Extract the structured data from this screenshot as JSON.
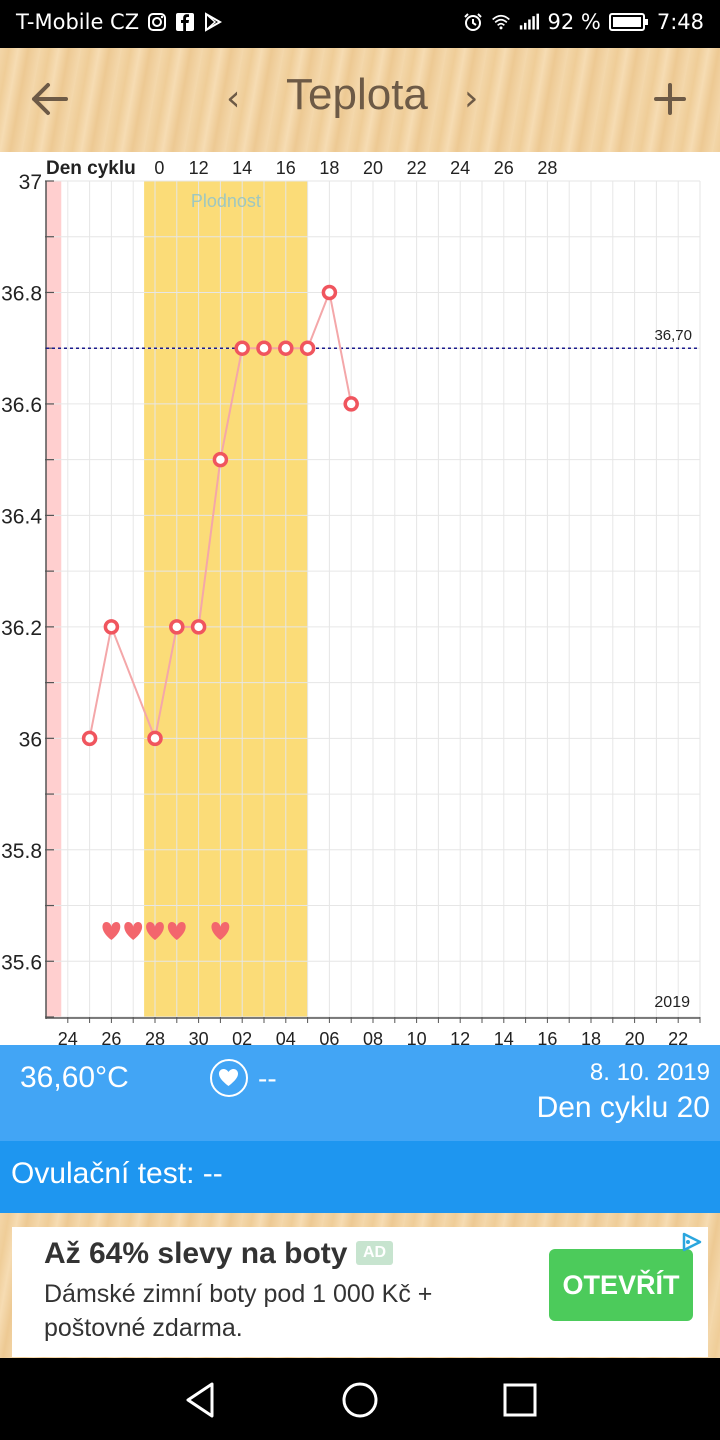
{
  "status_bar": {
    "carrier": "T-Mobile CZ",
    "battery": "92 %",
    "time": "7:48",
    "icons": [
      "instagram-icon",
      "facebook-icon",
      "play-store-icon",
      "alarm-icon",
      "wifi-icon",
      "signal-icon",
      "battery-icon"
    ]
  },
  "header": {
    "title": "Teplota",
    "prev_glyph": "‹",
    "next_glyph": "›"
  },
  "chart_data": {
    "type": "line",
    "top_axis_label": "Den cyklu",
    "top_ticks": [
      "0",
      "12",
      "14",
      "16",
      "18",
      "20",
      "22",
      "24",
      "26",
      "28"
    ],
    "bottom_ticks": [
      "24",
      "26",
      "28",
      "30",
      "02",
      "04",
      "06",
      "08",
      "10",
      "12",
      "14",
      "16",
      "18",
      "20",
      "22"
    ],
    "y_ticks": [
      "37",
      "36.8",
      "36.6",
      "36.4",
      "36.2",
      "36",
      "35.8",
      "35.6"
    ],
    "ylim": [
      35.5,
      37.0
    ],
    "x_range": [
      23,
      53
    ],
    "year_label": "2019",
    "fertile_label": "Plodnost",
    "fertile_range": [
      27.5,
      35.0
    ],
    "period_range": [
      23.0,
      23.7
    ],
    "threshold": {
      "value": 36.7,
      "label": "36,70"
    },
    "series": [
      {
        "points": [
          {
            "x": 25,
            "y": 36.0
          },
          {
            "x": 26,
            "y": 36.2
          },
          {
            "x": 28,
            "y": 36.0
          },
          {
            "x": 29,
            "y": 36.2
          },
          {
            "x": 30,
            "y": 36.2
          },
          {
            "x": 31,
            "y": 36.5
          },
          {
            "x": 32,
            "y": 36.7
          },
          {
            "x": 33,
            "y": 36.7
          },
          {
            "x": 34,
            "y": 36.7
          },
          {
            "x": 35,
            "y": 36.7
          },
          {
            "x": 36,
            "y": 36.8
          },
          {
            "x": 37,
            "y": 36.6
          }
        ]
      }
    ],
    "hearts_x": [
      26,
      27,
      28,
      29,
      31
    ],
    "colors": {
      "line": "#f4a7a9",
      "point": "#f0555e",
      "fertile": "#fbdc78",
      "period": "#ffcfcf",
      "threshold": "#1a1a8c",
      "grid": "#e6e6e6"
    }
  },
  "info": {
    "temperature": "36,60°C",
    "heart_value": "--",
    "date": "8. 10. 2019",
    "cycle_day": "Den cyklu 20"
  },
  "ovulation": {
    "text": "Ovulační test: --"
  },
  "ad": {
    "title": "Až 64% slevy na boty",
    "badge": "AD",
    "description": "Dámské zimní boty pod 1 000 Kč + poštovné zdarma.",
    "button": "OTEVŘÍT"
  }
}
